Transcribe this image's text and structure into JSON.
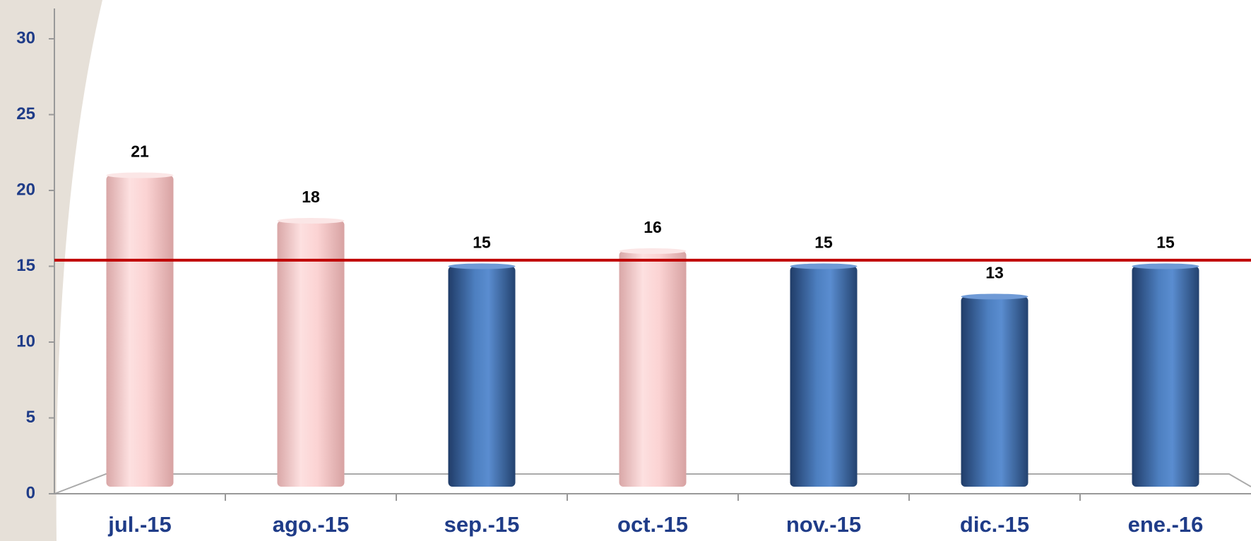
{
  "chart_data": {
    "type": "bar",
    "categories": [
      "jul.-15",
      "ago.-15",
      "sep.-15",
      "oct.-15",
      "nov.-15",
      "dic.-15",
      "ene.-16"
    ],
    "values": [
      21,
      18,
      15,
      16,
      15,
      13,
      15
    ],
    "colors": [
      "pink",
      "pink",
      "blue",
      "pink",
      "blue",
      "blue",
      "blue"
    ],
    "reference_line": 15.4,
    "reference_color": "#c00000",
    "ylim": [
      0,
      30
    ],
    "yticks": [
      0,
      5,
      10,
      15,
      20,
      25,
      30
    ]
  }
}
